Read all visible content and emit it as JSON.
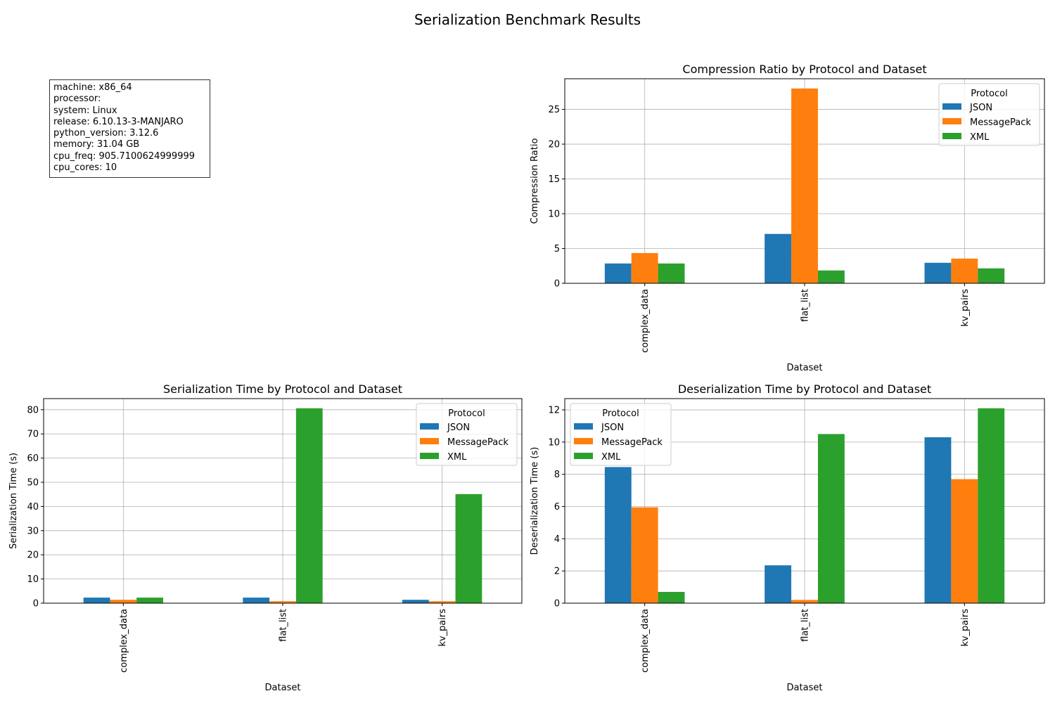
{
  "suptitle": "Serialization Benchmark Results",
  "system_info": [
    "machine: x86_64",
    "processor: ",
    "system: Linux",
    "release: 6.10.13-3-MANJARO",
    "python_version: 3.12.6",
    "memory: 31.04 GB",
    "cpu_freq: 905.7100624999999",
    "cpu_cores: 10"
  ],
  "colors": {
    "JSON": "#1f77b4",
    "MessagePack": "#ff7f0e",
    "XML": "#2ca02c",
    "grid": "#b0b0b0"
  },
  "chart_data": [
    {
      "id": "compression",
      "type": "bar",
      "title": "Compression Ratio by Protocol and Dataset",
      "xlabel": "Dataset",
      "ylabel": "Compression Ratio",
      "categories": [
        "complex_data",
        "flat_list",
        "kv_pairs"
      ],
      "series": [
        {
          "name": "JSON",
          "values": [
            2.85,
            7.1,
            2.95
          ]
        },
        {
          "name": "MessagePack",
          "values": [
            4.35,
            28.0,
            3.55
          ]
        },
        {
          "name": "XML",
          "values": [
            2.85,
            1.85,
            2.15
          ]
        }
      ],
      "ylim": [
        0,
        29.4
      ],
      "yticks": [
        0,
        5,
        10,
        15,
        20,
        25
      ],
      "grid": true,
      "legend": {
        "title": "Protocol",
        "placement": "top-right"
      }
    },
    {
      "id": "serialization",
      "type": "bar",
      "title": "Serialization Time by Protocol and Dataset",
      "xlabel": "Dataset",
      "ylabel": "Serialization Time (s)",
      "categories": [
        "complex_data",
        "flat_list",
        "kv_pairs"
      ],
      "series": [
        {
          "name": "JSON",
          "values": [
            2.3,
            2.3,
            1.4
          ]
        },
        {
          "name": "MessagePack",
          "values": [
            1.4,
            0.8,
            0.8
          ]
        },
        {
          "name": "XML",
          "values": [
            2.3,
            80.6,
            45.1
          ]
        }
      ],
      "ylim": [
        0,
        84.6
      ],
      "yticks": [
        0,
        10,
        20,
        30,
        40,
        50,
        60,
        70,
        80
      ],
      "grid": true,
      "legend": {
        "title": "Protocol",
        "placement": "top-right"
      }
    },
    {
      "id": "deserialization",
      "type": "bar",
      "title": "Deserialization Time by Protocol and Dataset",
      "xlabel": "Dataset",
      "ylabel": "Deserialization Time (s)",
      "categories": [
        "complex_data",
        "flat_list",
        "kv_pairs"
      ],
      "series": [
        {
          "name": "JSON",
          "values": [
            8.45,
            2.35,
            10.3
          ]
        },
        {
          "name": "MessagePack",
          "values": [
            5.95,
            0.2,
            7.7
          ]
        },
        {
          "name": "XML",
          "values": [
            0.7,
            10.5,
            12.1
          ]
        }
      ],
      "ylim": [
        0,
        12.7
      ],
      "yticks": [
        0,
        2,
        4,
        6,
        8,
        10,
        12
      ],
      "grid": true,
      "legend": {
        "title": "Protocol",
        "placement": "top-left"
      }
    }
  ]
}
